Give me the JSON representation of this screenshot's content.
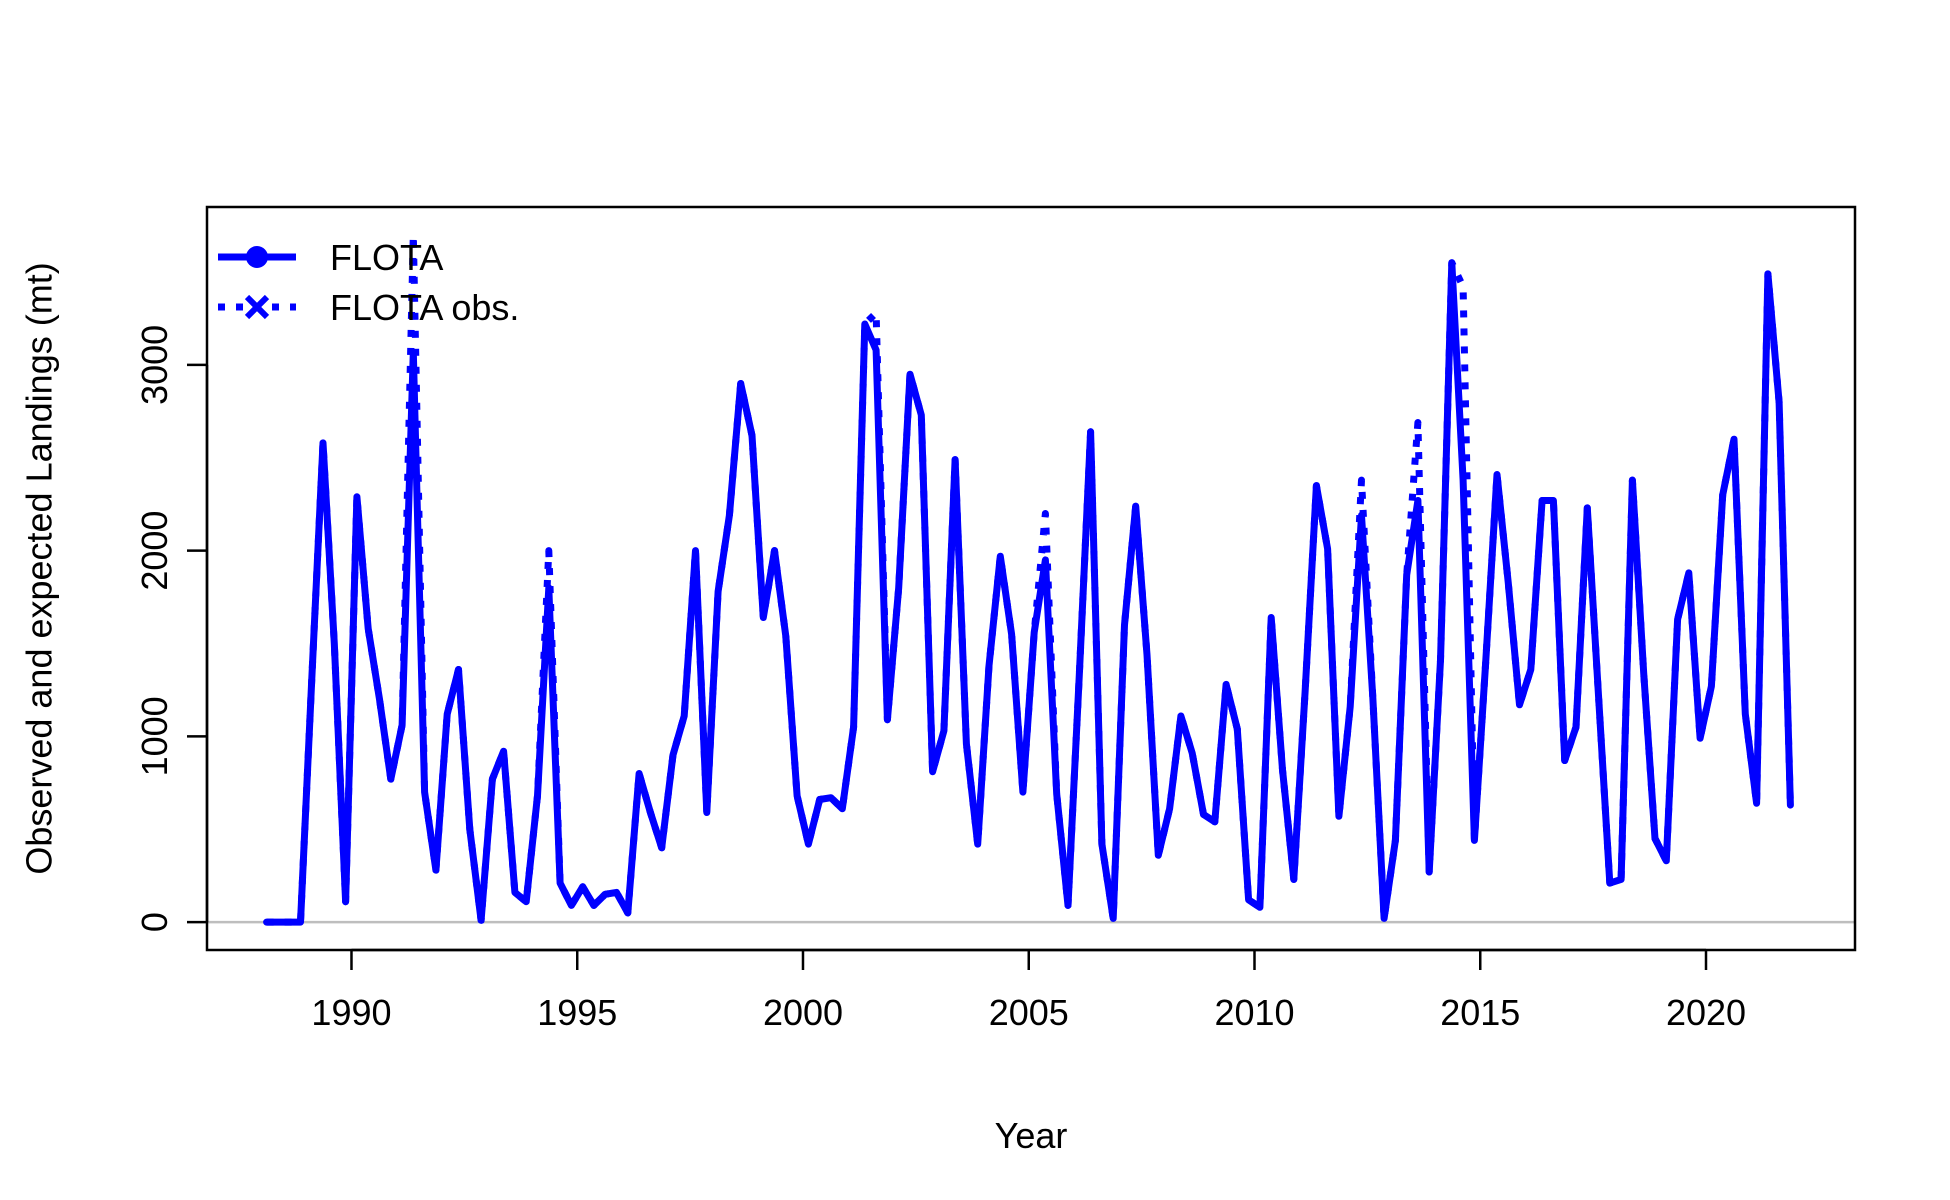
{
  "chart_data": {
    "type": "line",
    "xlabel": "Year",
    "ylabel": "Observed and expected Landings (mt)",
    "xlim": [
      1986.8,
      2023.3
    ],
    "ylim": [
      -150,
      3850
    ],
    "xticks": [
      1990,
      1995,
      2000,
      2005,
      2010,
      2015,
      2020
    ],
    "yticks": [
      0,
      1000,
      2000,
      3000
    ],
    "grid": false,
    "zero_line": true,
    "legend": {
      "position": "top-left",
      "entries": [
        "FLOTA",
        "FLOTA obs."
      ]
    },
    "colors": {
      "series": "#0000ff",
      "zero_line": "#bebebe",
      "axis": "#000000"
    },
    "series": [
      {
        "name": "FLOTA",
        "style": "solid",
        "x": [
          1988.12,
          1988.37,
          1988.62,
          1988.87,
          1989.12,
          1989.37,
          1989.62,
          1989.87,
          1990.12,
          1990.37,
          1990.62,
          1990.87,
          1991.12,
          1991.37,
          1991.62,
          1991.87,
          1992.12,
          1992.37,
          1992.62,
          1992.87,
          1993.12,
          1993.37,
          1993.62,
          1993.87,
          1994.12,
          1994.37,
          1994.62,
          1994.87,
          1995.12,
          1995.37,
          1995.62,
          1995.87,
          1996.12,
          1996.37,
          1996.62,
          1996.87,
          1997.12,
          1997.37,
          1997.62,
          1997.87,
          1998.12,
          1998.37,
          1998.62,
          1998.87,
          1999.12,
          1999.37,
          1999.62,
          1999.87,
          2000.12,
          2000.37,
          2000.62,
          2000.87,
          2001.12,
          2001.37,
          2001.62,
          2001.87,
          2002.12,
          2002.37,
          2002.62,
          2002.87,
          2003.12,
          2003.37,
          2003.62,
          2003.87,
          2004.12,
          2004.37,
          2004.62,
          2004.87,
          2005.12,
          2005.37,
          2005.62,
          2005.87,
          2006.12,
          2006.37,
          2006.62,
          2006.87,
          2007.12,
          2007.37,
          2007.62,
          2007.87,
          2008.12,
          2008.37,
          2008.62,
          2008.87,
          2009.12,
          2009.37,
          2009.62,
          2009.87,
          2010.12,
          2010.37,
          2010.62,
          2010.87,
          2011.12,
          2011.37,
          2011.62,
          2011.87,
          2012.12,
          2012.37,
          2012.62,
          2012.87,
          2013.12,
          2013.37,
          2013.62,
          2013.87,
          2014.12,
          2014.37,
          2014.62,
          2014.87,
          2015.12,
          2015.37,
          2015.62,
          2015.87,
          2016.12,
          2016.37,
          2016.62,
          2016.87,
          2017.12,
          2017.37,
          2017.62,
          2017.87,
          2018.12,
          2018.37,
          2018.62,
          2018.87,
          2019.12,
          2019.37,
          2019.62,
          2019.87,
          2020.12,
          2020.37,
          2020.62,
          2020.87,
          2021.12,
          2021.37,
          2021.62,
          2021.87
        ],
        "values": [
          0,
          0,
          0,
          0,
          1300,
          2580,
          1500,
          110,
          2290,
          1580,
          1200,
          770,
          1060,
          3070,
          700,
          280,
          1120,
          1360,
          500,
          10,
          770,
          920,
          160,
          110,
          680,
          1800,
          210,
          90,
          190,
          90,
          150,
          160,
          50,
          800,
          590,
          400,
          900,
          1110,
          2000,
          590,
          1780,
          2190,
          2900,
          2620,
          1640,
          2000,
          1540,
          680,
          420,
          660,
          670,
          610,
          1050,
          3220,
          3080,
          1090,
          1800,
          2950,
          2730,
          810,
          1030,
          2490,
          960,
          420,
          1380,
          1970,
          1550,
          700,
          1560,
          1950,
          690,
          90,
          1330,
          2640,
          420,
          20,
          1600,
          2240,
          1440,
          360,
          610,
          1110,
          910,
          580,
          540,
          1280,
          1040,
          120,
          80,
          1640,
          820,
          230,
          1240,
          2350,
          2010,
          570,
          1160,
          2190,
          1210,
          20,
          440,
          1870,
          2270,
          270,
          1410,
          3550,
          2380,
          440,
          1400,
          2410,
          1830,
          1170,
          1360,
          2270,
          2270,
          870,
          1050,
          2230,
          1220,
          210,
          230,
          2380,
          1340,
          450,
          330,
          1630,
          1880,
          990,
          1270,
          2300,
          2600,
          1120,
          640,
          3490,
          2800,
          630
        ]
      },
      {
        "name": "FLOTA obs.",
        "style": "dotted",
        "x": [
          1988.12,
          1988.37,
          1988.62,
          1988.87,
          1989.12,
          1989.37,
          1989.62,
          1989.87,
          1990.12,
          1990.37,
          1990.62,
          1990.87,
          1991.12,
          1991.37,
          1991.62,
          1991.87,
          1992.12,
          1992.37,
          1992.62,
          1992.87,
          1993.12,
          1993.37,
          1993.62,
          1993.87,
          1994.12,
          1994.37,
          1994.62,
          1994.87,
          1995.12,
          1995.37,
          1995.62,
          1995.87,
          1996.12,
          1996.37,
          1996.62,
          1996.87,
          1997.12,
          1997.37,
          1997.62,
          1997.87,
          1998.12,
          1998.37,
          1998.62,
          1998.87,
          1999.12,
          1999.37,
          1999.62,
          1999.87,
          2000.12,
          2000.37,
          2000.62,
          2000.87,
          2001.12,
          2001.37,
          2001.62,
          2001.87,
          2002.12,
          2002.37,
          2002.62,
          2002.87,
          2003.12,
          2003.37,
          2003.62,
          2003.87,
          2004.12,
          2004.37,
          2004.62,
          2004.87,
          2005.12,
          2005.37,
          2005.62,
          2005.87,
          2006.12,
          2006.37,
          2006.62,
          2006.87,
          2007.12,
          2007.37,
          2007.62,
          2007.87,
          2008.12,
          2008.37,
          2008.62,
          2008.87,
          2009.12,
          2009.37,
          2009.62,
          2009.87,
          2010.12,
          2010.37,
          2010.62,
          2010.87,
          2011.12,
          2011.37,
          2011.62,
          2011.87,
          2012.12,
          2012.37,
          2012.62,
          2012.87,
          2013.12,
          2013.37,
          2013.62,
          2013.87,
          2014.12,
          2014.37,
          2014.62,
          2014.87,
          2015.12,
          2015.37,
          2015.62,
          2015.87,
          2016.12,
          2016.37,
          2016.62,
          2016.87,
          2017.12,
          2017.37,
          2017.62,
          2017.87,
          2018.12,
          2018.37,
          2018.62,
          2018.87,
          2019.12,
          2019.37,
          2019.62,
          2019.87,
          2020.12,
          2020.37,
          2020.62,
          2020.87,
          2021.12,
          2021.37,
          2021.62,
          2021.87
        ],
        "values": [
          0,
          0,
          0,
          0,
          1300,
          2580,
          1500,
          110,
          2290,
          1580,
          1200,
          770,
          1060,
          3700,
          700,
          280,
          1120,
          1360,
          500,
          10,
          770,
          920,
          160,
          110,
          680,
          2000,
          210,
          90,
          190,
          90,
          150,
          160,
          50,
          800,
          590,
          400,
          900,
          1110,
          2000,
          590,
          1780,
          2190,
          2900,
          2620,
          1640,
          2000,
          1540,
          680,
          420,
          660,
          670,
          610,
          1050,
          3220,
          3280,
          1090,
          1800,
          2950,
          2730,
          810,
          1030,
          2490,
          960,
          420,
          1380,
          1970,
          1550,
          700,
          1560,
          2200,
          690,
          90,
          1330,
          2640,
          420,
          20,
          1600,
          2240,
          1440,
          360,
          610,
          1110,
          910,
          580,
          540,
          1280,
          1040,
          120,
          80,
          1640,
          820,
          230,
          1240,
          2350,
          2010,
          570,
          1160,
          2380,
          1210,
          20,
          440,
          1870,
          2690,
          270,
          1410,
          3550,
          3420,
          440,
          1400,
          2410,
          1830,
          1170,
          1360,
          2270,
          2270,
          870,
          1050,
          2230,
          1220,
          210,
          230,
          2380,
          1340,
          450,
          330,
          1630,
          1880,
          990,
          1270,
          2300,
          2600,
          1120,
          640,
          3490,
          2800,
          630
        ]
      }
    ]
  }
}
